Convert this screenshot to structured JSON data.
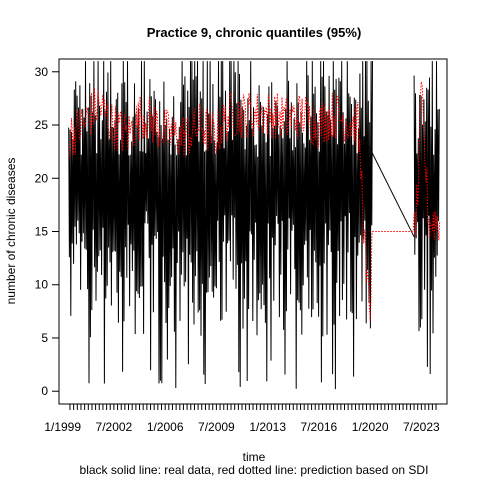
{
  "chart_data": {
    "type": "line",
    "title": "Practice 9, chronic quantiles (95%)",
    "xlabel": "time",
    "ylabel": "number of chronic diseases",
    "caption": "black solid line: real data, red dotted line: prediction based on SDI",
    "x_range": [
      "1998-10-01",
      "2025-04-01"
    ],
    "ylim": [
      -1.2,
      31.2
    ],
    "y_ticks": [
      0,
      5,
      10,
      15,
      20,
      25,
      30
    ],
    "x_ticks": [
      {
        "label": "1/1999",
        "date": "1999-01-01"
      },
      {
        "label": "7/2002",
        "date": "2002-07-01"
      },
      {
        "label": "1/2006",
        "date": "2006-01-01"
      },
      {
        "label": "7/2009",
        "date": "2009-07-01"
      },
      {
        "label": "1/2013",
        "date": "2013-01-01"
      },
      {
        "label": "7/2016",
        "date": "2016-07-01"
      },
      {
        "label": "1/2020",
        "date": "2020-01-01"
      },
      {
        "label": "7/2023",
        "date": "2023-07-01"
      }
    ],
    "grid": false,
    "legend": "none",
    "series": [
      {
        "role": "real data",
        "style": "solid",
        "color": "#000000",
        "segments": [
          {
            "start": "1999-06-01",
            "end": "2020-03-01",
            "min": 0,
            "max": 31,
            "typical_low": 5,
            "typical_high": 30
          },
          {
            "start": "2023-01-01",
            "end": "2024-10-01",
            "min": 0,
            "max": 31,
            "typical_low": 5,
            "typical_high": 30
          }
        ],
        "connector": [
          {
            "date": "2019-12-01",
            "value": 23
          },
          {
            "date": "2023-01-01",
            "value": 14.5
          }
        ]
      },
      {
        "role": "prediction based on SDI",
        "style": "dotted",
        "color": "#ff0000",
        "points": [
          {
            "date": "1999-06-01",
            "value": 24
          },
          {
            "date": "2000-06-01",
            "value": 25
          },
          {
            "date": "2001-06-01",
            "value": 27
          },
          {
            "date": "2002-06-01",
            "value": 25
          },
          {
            "date": "2003-06-01",
            "value": 24
          },
          {
            "date": "2004-06-01",
            "value": 26
          },
          {
            "date": "2005-06-01",
            "value": 25
          },
          {
            "date": "2006-06-01",
            "value": 24
          },
          {
            "date": "2007-06-01",
            "value": 24
          },
          {
            "date": "2008-06-01",
            "value": 25
          },
          {
            "date": "2009-06-01",
            "value": 24
          },
          {
            "date": "2010-06-01",
            "value": 26
          },
          {
            "date": "2011-06-01",
            "value": 26
          },
          {
            "date": "2012-06-01",
            "value": 26
          },
          {
            "date": "2013-06-01",
            "value": 26
          },
          {
            "date": "2014-06-01",
            "value": 25.5
          },
          {
            "date": "2015-06-01",
            "value": 26
          },
          {
            "date": "2016-06-01",
            "value": 25
          },
          {
            "date": "2017-06-01",
            "value": 26
          },
          {
            "date": "2018-06-01",
            "value": 25.5
          },
          {
            "date": "2019-03-01",
            "value": 25
          },
          {
            "date": "2019-07-01",
            "value": 18
          },
          {
            "date": "2019-10-01",
            "value": 10
          },
          {
            "date": "2020-01-01",
            "value": 8
          },
          {
            "date": "2020-03-01",
            "value": 15
          },
          {
            "date": "2023-01-01",
            "value": 15
          },
          {
            "date": "2023-04-01",
            "value": 18
          },
          {
            "date": "2023-07-01",
            "value": 28
          },
          {
            "date": "2024-01-01",
            "value": 16
          },
          {
            "date": "2024-10-01",
            "value": 16
          }
        ]
      }
    ]
  }
}
